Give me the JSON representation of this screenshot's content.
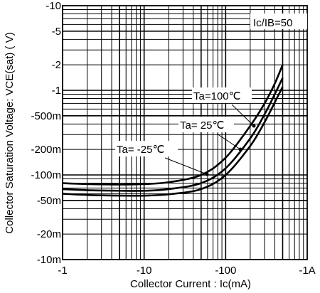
{
  "chart_data": {
    "type": "line",
    "xlabel": "Collector Current : Ic(mA)",
    "ylabel": "Collector  Saturation Voltage: VCE(sat) ( V)",
    "x_scale": "log",
    "y_scale": "log",
    "xlim": [
      -1,
      -1000
    ],
    "ylim": [
      -0.01,
      -10
    ],
    "x_ticks": [
      {
        "value": -1,
        "label": "-1"
      },
      {
        "value": -10,
        "label": "-10"
      },
      {
        "value": -100,
        "label": "-100"
      },
      {
        "value": -1000,
        "label": "-1A"
      }
    ],
    "y_ticks": [
      {
        "value": -10,
        "label": "-10"
      },
      {
        "value": -5,
        "label": "-5"
      },
      {
        "value": -2,
        "label": "-2"
      },
      {
        "value": -1,
        "label": "-1"
      },
      {
        "value": -0.5,
        "label": "-500m"
      },
      {
        "value": -0.2,
        "label": "-200m"
      },
      {
        "value": -0.1,
        "label": "-100m"
      },
      {
        "value": -0.05,
        "label": "-50m"
      },
      {
        "value": -0.02,
        "label": "-20m"
      },
      {
        "value": -0.01,
        "label": "-10m"
      }
    ],
    "grid": true,
    "condition_label": "Ic/IB=50",
    "series": [
      {
        "name": "Ta=100℃",
        "x": [
          -1,
          -2,
          -5,
          -10,
          -20,
          -50,
          -100,
          -200,
          -300,
          -400,
          -500
        ],
        "y": [
          -0.08,
          -0.078,
          -0.077,
          -0.078,
          -0.082,
          -0.1,
          -0.16,
          -0.38,
          -0.7,
          -1.2,
          -2.0
        ]
      },
      {
        "name": "Ta= 25℃",
        "x": [
          -1,
          -2,
          -5,
          -10,
          -20,
          -50,
          -100,
          -200,
          -300,
          -400,
          -500
        ],
        "y": [
          -0.068,
          -0.066,
          -0.065,
          -0.065,
          -0.068,
          -0.08,
          -0.12,
          -0.27,
          -0.52,
          -0.9,
          -1.4
        ]
      },
      {
        "name": "Ta= -25℃",
        "x": [
          -1,
          -2,
          -5,
          -10,
          -20,
          -50,
          -100,
          -200,
          -300,
          -400,
          -500
        ],
        "y": [
          -0.06,
          -0.058,
          -0.057,
          -0.057,
          -0.059,
          -0.068,
          -0.1,
          -0.22,
          -0.42,
          -0.72,
          -1.1
        ]
      }
    ]
  }
}
